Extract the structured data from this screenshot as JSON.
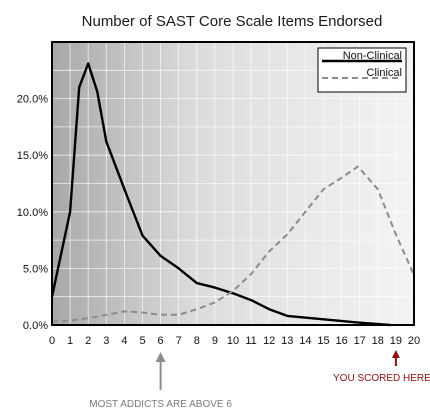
{
  "chart_data": {
    "type": "line",
    "title": "Number of SAST Core Scale Items Endorsed",
    "xlabel": "",
    "ylabel": "",
    "x_ticks": [
      "0",
      "1",
      "2",
      "3",
      "4",
      "5",
      "6",
      "7",
      "8",
      "9",
      "10",
      "11",
      "12",
      "13",
      "14",
      "15",
      "16",
      "17",
      "18",
      "19",
      "20"
    ],
    "y_ticks": [
      "0.0%",
      "5.0%",
      "10.0%",
      "15.0%",
      "20.0%"
    ],
    "xlim": [
      0,
      20
    ],
    "ylim": [
      0,
      25
    ],
    "grid": true,
    "legend_position": "top-right",
    "series": [
      {
        "name": "Non-Clinical",
        "style": "solid",
        "color": "#000000",
        "points": [
          [
            0,
            2.5
          ],
          [
            1,
            10
          ],
          [
            1.5,
            21
          ],
          [
            2,
            23.1
          ],
          [
            2.5,
            20.6
          ],
          [
            3,
            16.2
          ],
          [
            4,
            12
          ],
          [
            5,
            7.9
          ],
          [
            6,
            6.1
          ],
          [
            7,
            5
          ],
          [
            8,
            3.7
          ],
          [
            9,
            3.3
          ],
          [
            10,
            2.8
          ],
          [
            11,
            2.2
          ],
          [
            12,
            1.4
          ],
          [
            13,
            0.8
          ],
          [
            15,
            0.5
          ],
          [
            17,
            0.2
          ],
          [
            18.7,
            0
          ]
        ]
      },
      {
        "name": "Clinical",
        "style": "dashed",
        "color": "#8c8c8c",
        "points": [
          [
            0,
            0.3
          ],
          [
            1,
            0.4
          ],
          [
            2,
            0.6
          ],
          [
            3,
            0.9
          ],
          [
            4,
            1.2
          ],
          [
            5,
            1.1
          ],
          [
            6,
            0.9
          ],
          [
            7,
            0.9
          ],
          [
            8,
            1.4
          ],
          [
            9,
            2
          ],
          [
            10,
            3
          ],
          [
            11,
            4.5
          ],
          [
            12,
            6.5
          ],
          [
            13,
            8
          ],
          [
            14,
            10
          ],
          [
            15,
            12
          ],
          [
            16,
            13
          ],
          [
            16.9,
            14
          ],
          [
            18,
            12
          ],
          [
            19,
            8
          ],
          [
            20,
            4.4
          ]
        ]
      }
    ],
    "annotations": [
      {
        "text": "MOST ADDICTS ARE ABOVE 6",
        "x": 6,
        "color": "#8c8c8c"
      },
      {
        "text": "YOU SCORED HERE",
        "x": 19,
        "color": "#8b1010"
      }
    ]
  }
}
